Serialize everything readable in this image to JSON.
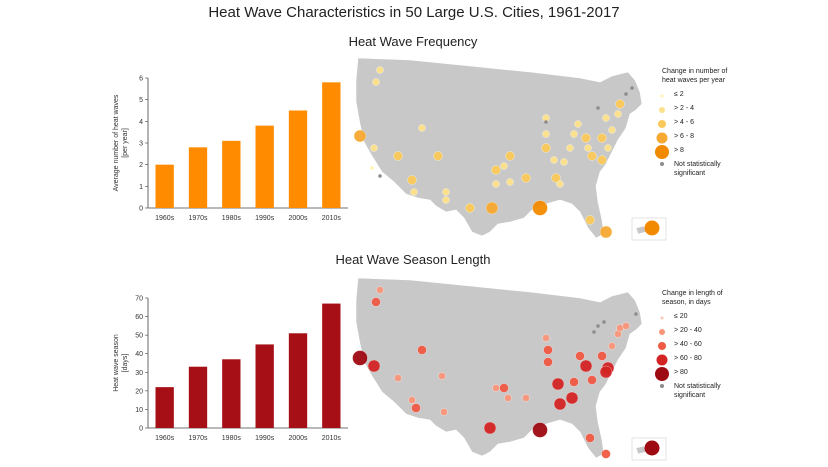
{
  "title": "Heat Wave Characteristics in 50 Large U.S. Cities, 1961-2017",
  "panels": {
    "frequency": {
      "title": "Heat Wave Frequency",
      "legend": {
        "title": "Change in number of heat waves per year",
        "items": [
          "≤ 2",
          "> 2 - 4",
          "> 4 - 6",
          "> 6 - 8",
          "> 8"
        ],
        "not_significant": "Not statistically significant"
      }
    },
    "season": {
      "title": "Heat Wave Season Length",
      "legend": {
        "title": "Change in length of season, in days",
        "items": [
          "≤ 20",
          "> 20 - 40",
          "> 40 - 60",
          "> 60 - 80",
          "> 80"
        ],
        "not_significant": "Not statistically significant"
      }
    }
  },
  "colors": {
    "frequency_bar": "#FF8C00",
    "season_bar": "#A50F15",
    "map_land": "#C8C8C8",
    "not_significant": "#8C8C8C",
    "frequency_scale": [
      "#FFF3B0",
      "#FDE08A",
      "#FBC95A",
      "#F7A932",
      "#F28A00"
    ],
    "season_scale": [
      "#FCC8B4",
      "#F9957A",
      "#EF5A44",
      "#D32424",
      "#9E0A12"
    ]
  },
  "chart_data": [
    {
      "type": "bar",
      "title": "",
      "categories": [
        "1960s",
        "1970s",
        "1980s",
        "1990s",
        "2000s",
        "2010s"
      ],
      "values": [
        2.0,
        2.8,
        3.1,
        3.8,
        4.5,
        5.8
      ],
      "xlabel": "",
      "ylabel": "Average number of heat waves [per year]",
      "ylim": [
        0,
        6
      ],
      "yticks": [
        0,
        1,
        2,
        3,
        4,
        5,
        6
      ],
      "grid": false
    },
    {
      "type": "bar",
      "title": "",
      "categories": [
        "1960s",
        "1970s",
        "1980s",
        "1990s",
        "2000s",
        "2010s"
      ],
      "values": [
        22,
        33,
        37,
        45,
        51,
        67
      ],
      "xlabel": "",
      "ylabel": "Heat wave season [days]",
      "ylim": [
        0,
        70
      ],
      "yticks": [
        0,
        10,
        20,
        30,
        40,
        50,
        60,
        70
      ],
      "grid": false
    }
  ]
}
